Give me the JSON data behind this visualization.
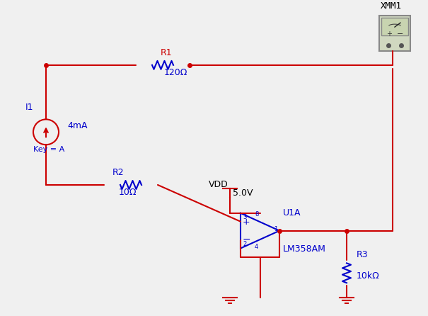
{
  "bg_color": "#f0f0f0",
  "wire_color": "#cc0000",
  "component_color": "#0000cc",
  "label_color_blue": "#0000cc",
  "label_color_red": "#cc0000",
  "title": "",
  "R1_label": "R1",
  "R1_value": "120Ω",
  "R2_label": "R2",
  "R2_value": "10Ω",
  "R3_label": "R3",
  "R3_value": "10kΩ",
  "I1_label": "I1",
  "I1_value": "4mA",
  "I1_key": "Key = A",
  "VDD_label": "VDD",
  "VDD_value": "5.0V",
  "U1A_label": "U1A",
  "IC_label": "LM358AM",
  "XMM1_label": "XMM1"
}
